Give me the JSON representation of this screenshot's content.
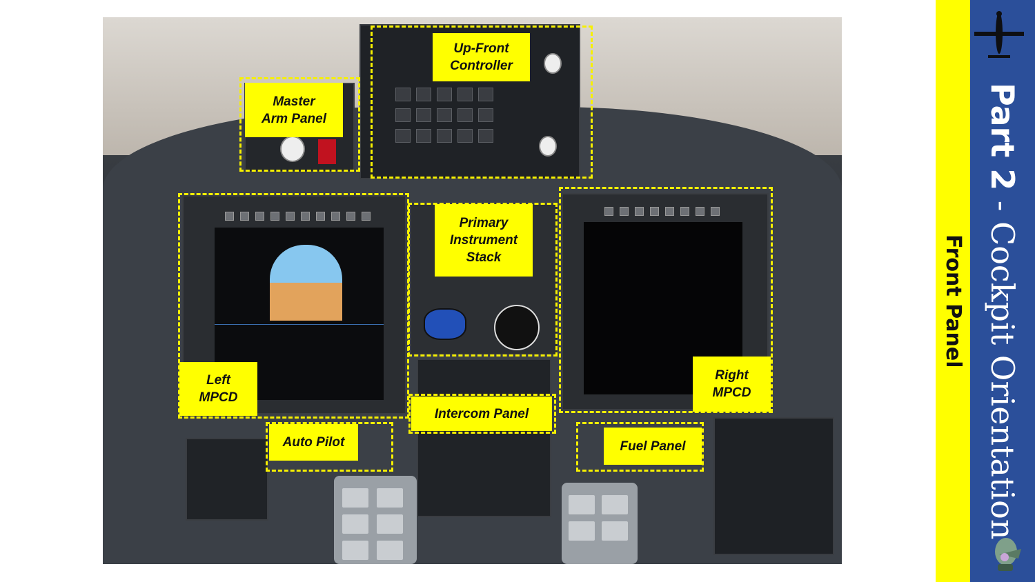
{
  "slide": {
    "title_part": "Part 2",
    "title_separator": " - ",
    "title_rest": "Cockpit Orientation",
    "subtitle": "Front Panel"
  },
  "callouts": {
    "up_front_controller": "Up-Front\nController",
    "master_arm_panel": "Master\nArm Panel",
    "primary_instrument_stack": "Primary\nInstrument\nStack",
    "left_mpcd": "Left\nMPCD",
    "right_mpcd": "Right\nMPCD",
    "intercom_panel": "Intercom Panel",
    "auto_pilot": "Auto Pilot",
    "fuel_panel": "Fuel Panel"
  },
  "colors": {
    "highlight": "#ffff00",
    "dash": "#f6f000",
    "sidebar_blue": "#2b4f9a"
  },
  "icons": [
    "aircraft-silhouette-icon",
    "mascot-logo-icon"
  ]
}
